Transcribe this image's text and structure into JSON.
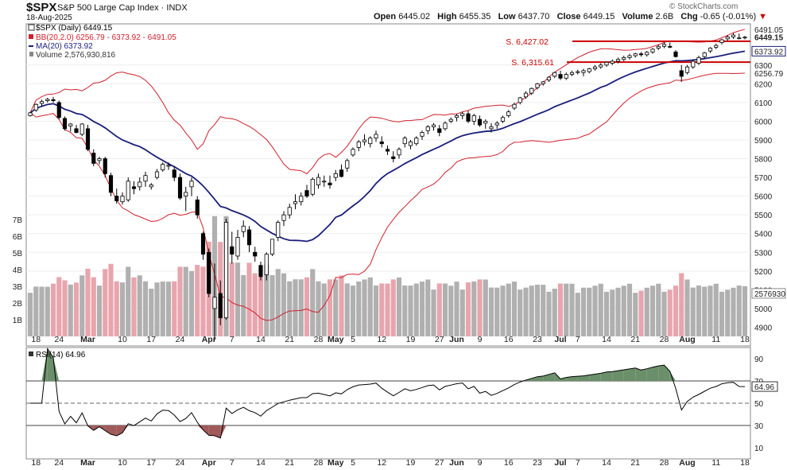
{
  "header": {
    "symbol": "$SPX",
    "name": "S&P 500 Large Cap Index",
    "exchange": "INDX",
    "date": "18-Aug-2025",
    "open_label": "Open",
    "open": "6445.02",
    "high_label": "High",
    "high": "6455.35",
    "low_label": "Low",
    "low": "6437.70",
    "close_label": "Close",
    "close": "6449.15",
    "volume_label": "Volume",
    "volume": "2.6B",
    "chg_label": "Chg",
    "chg": "-0.65 (-0.01%)",
    "watermark": "© StockCharts.com"
  },
  "legend": {
    "price": "$SPX (Daily) 6449.15",
    "bb": "BB(20,2.0) 6256.79 - 6373.92 - 6491.05",
    "ma": "MA(20) 6373.92",
    "volume": "Volume 2,576,930,816",
    "rsi": "RSI(14) 64.96"
  },
  "colors": {
    "up": "#ffffff",
    "down": "#000000",
    "bb": "#d0202c",
    "ma": "#1a1f7a",
    "vol_up": "#b0b0b0",
    "vol_down": "#e8a5ad",
    "support": "#cc0000",
    "rsi_fill": "#6a8f6a"
  },
  "annotations": [
    {
      "text": "S. 6,427.02",
      "price": 6427.02
    },
    {
      "text": "S. 6,315.61",
      "price": 6315.61
    }
  ],
  "price_axis": {
    "ticks": [
      "6300",
      "6200",
      "6100",
      "6000",
      "5900",
      "5800",
      "5700",
      "5600",
      "5500",
      "5400",
      "5300",
      "5200",
      "5100",
      "5000",
      "4900"
    ],
    "markers": [
      {
        "text": "6491.05",
        "value": 6491.05,
        "style": "plain"
      },
      {
        "text": "6449.15",
        "value": 6449.15,
        "style": "bold"
      },
      {
        "text": "6373.92",
        "value": 6373.92,
        "style": "box"
      },
      {
        "text": "6256.79",
        "value": 6256.79,
        "style": "plain"
      }
    ]
  },
  "volume_axis": {
    "ticks": [
      "7B",
      "6B",
      "5B",
      "4B",
      "3B",
      "2B",
      "1B"
    ],
    "marker": "2576930"
  },
  "rsi_axis": {
    "ticks": [
      "90",
      "70",
      "50",
      "30",
      "10"
    ],
    "marker": "64.96"
  },
  "x_axis": {
    "labels": [
      "18",
      "24",
      "Mar",
      "10",
      "17",
      "24",
      "Apr",
      "7",
      "14",
      "21",
      "28",
      "May",
      "5",
      "12",
      "19",
      "27",
      "Jun",
      "9",
      "16",
      "23",
      "Jul",
      "7",
      "14",
      "21",
      "28",
      "Aug",
      "11",
      "18"
    ],
    "bold": [
      "Mar",
      "Apr",
      "May",
      "Jun",
      "Jul",
      "Aug"
    ]
  },
  "chart_data": {
    "type": "candlestick",
    "period": "daily",
    "x_start": "2025-02-13",
    "x_end": "2025-08-18",
    "price_ylim": [
      4800,
      6520
    ],
    "candles": [
      [
        6030,
        6050,
        6025,
        6045
      ],
      [
        6060,
        6095,
        6050,
        6090
      ],
      [
        6095,
        6115,
        6080,
        6105
      ],
      [
        6110,
        6125,
        6100,
        6117
      ],
      [
        6115,
        6130,
        6100,
        6110
      ],
      [
        6100,
        6110,
        6010,
        6020
      ],
      [
        6015,
        6025,
        5950,
        5960
      ],
      [
        5975,
        5990,
        5945,
        5985
      ],
      [
        5960,
        5980,
        5935,
        5940
      ],
      [
        5930,
        5990,
        5920,
        5985
      ],
      [
        5960,
        5980,
        5840,
        5850
      ],
      [
        5830,
        5850,
        5760,
        5775
      ],
      [
        5790,
        5810,
        5770,
        5800
      ],
      [
        5800,
        5810,
        5700,
        5720
      ],
      [
        5710,
        5725,
        5600,
        5620
      ],
      [
        5600,
        5640,
        5560,
        5575
      ],
      [
        5570,
        5620,
        5555,
        5600
      ],
      [
        5580,
        5700,
        5570,
        5680
      ],
      [
        5650,
        5680,
        5610,
        5640
      ],
      [
        5650,
        5700,
        5630,
        5675
      ],
      [
        5680,
        5730,
        5650,
        5710
      ],
      [
        5650,
        5670,
        5635,
        5660
      ],
      [
        5700,
        5745,
        5690,
        5730
      ],
      [
        5740,
        5780,
        5730,
        5770
      ],
      [
        5760,
        5780,
        5740,
        5765
      ],
      [
        5740,
        5760,
        5680,
        5700
      ],
      [
        5700,
        5720,
        5580,
        5590
      ],
      [
        5600,
        5650,
        5520,
        5620
      ],
      [
        5650,
        5700,
        5600,
        5680
      ],
      [
        5580,
        5600,
        5480,
        5500
      ],
      [
        5400,
        5410,
        5260,
        5290
      ],
      [
        5300,
        5320,
        5060,
        5080
      ],
      [
        5000,
        5240,
        4830,
        5060
      ],
      [
        5080,
        5150,
        4910,
        4950
      ],
      [
        4950,
        5480,
        4940,
        5460
      ],
      [
        5330,
        5410,
        5240,
        5290
      ],
      [
        5280,
        5420,
        5260,
        5380
      ],
      [
        5410,
        5470,
        5380,
        5440
      ],
      [
        5420,
        5440,
        5300,
        5340
      ],
      [
        5300,
        5330,
        5250,
        5280
      ],
      [
        5230,
        5250,
        5150,
        5170
      ],
      [
        5180,
        5300,
        5150,
        5290
      ],
      [
        5290,
        5370,
        5280,
        5370
      ],
      [
        5380,
        5470,
        5360,
        5460
      ],
      [
        5470,
        5520,
        5440,
        5500
      ],
      [
        5500,
        5560,
        5480,
        5540
      ],
      [
        5560,
        5610,
        5530,
        5570
      ],
      [
        5570,
        5620,
        5550,
        5600
      ],
      [
        5630,
        5660,
        5590,
        5600
      ],
      [
        5610,
        5700,
        5600,
        5690
      ],
      [
        5660,
        5720,
        5640,
        5700
      ],
      [
        5680,
        5710,
        5650,
        5680
      ],
      [
        5670,
        5710,
        5640,
        5660
      ],
      [
        5700,
        5740,
        5680,
        5720
      ],
      [
        5740,
        5770,
        5700,
        5705
      ],
      [
        5750,
        5800,
        5730,
        5790
      ],
      [
        5820,
        5860,
        5810,
        5850
      ],
      [
        5860,
        5900,
        5840,
        5890
      ],
      [
        5890,
        5930,
        5870,
        5900
      ],
      [
        5880,
        5920,
        5860,
        5910
      ],
      [
        5910,
        5950,
        5890,
        5930
      ],
      [
        5890,
        5920,
        5860,
        5880
      ],
      [
        5850,
        5870,
        5820,
        5840
      ],
      [
        5810,
        5840,
        5780,
        5800
      ],
      [
        5820,
        5860,
        5800,
        5850
      ],
      [
        5880,
        5920,
        5860,
        5910
      ],
      [
        5870,
        5900,
        5850,
        5890
      ],
      [
        5880,
        5920,
        5870,
        5910
      ],
      [
        5920,
        5950,
        5900,
        5940
      ],
      [
        5950,
        5980,
        5930,
        5970
      ],
      [
        5970,
        5990,
        5950,
        5980
      ],
      [
        5960,
        5980,
        5920,
        5940
      ],
      [
        5960,
        6000,
        5950,
        5990
      ],
      [
        6000,
        6020,
        5990,
        6010
      ],
      [
        6020,
        6040,
        6000,
        6030
      ],
      [
        6030,
        6050,
        6010,
        6040
      ],
      [
        6040,
        6055,
        5990,
        6000
      ],
      [
        6000,
        6040,
        5980,
        6030
      ],
      [
        6010,
        6030,
        5970,
        5980
      ],
      [
        5990,
        6010,
        5960,
        6000
      ],
      [
        5960,
        5990,
        5940,
        5970
      ],
      [
        5980,
        6000,
        5960,
        5990
      ],
      [
        6000,
        6030,
        5990,
        6020
      ],
      [
        6030,
        6060,
        6020,
        6050
      ],
      [
        6070,
        6100,
        6060,
        6090
      ],
      [
        6100,
        6130,
        6090,
        6125
      ],
      [
        6130,
        6160,
        6120,
        6150
      ],
      [
        6150,
        6180,
        6140,
        6175
      ],
      [
        6180,
        6205,
        6170,
        6200
      ],
      [
        6200,
        6215,
        6190,
        6210
      ],
      [
        6220,
        6240,
        6210,
        6235
      ],
      [
        6240,
        6265,
        6230,
        6260
      ],
      [
        6250,
        6270,
        6220,
        6230
      ],
      [
        6230,
        6260,
        6220,
        6250
      ],
      [
        6250,
        6270,
        6240,
        6260
      ],
      [
        6260,
        6275,
        6250,
        6265
      ],
      [
        6260,
        6280,
        6240,
        6270
      ],
      [
        6265,
        6285,
        6255,
        6280
      ],
      [
        6280,
        6300,
        6270,
        6290
      ],
      [
        6290,
        6310,
        6280,
        6300
      ],
      [
        6300,
        6320,
        6290,
        6315
      ],
      [
        6310,
        6330,
        6300,
        6320
      ],
      [
        6320,
        6340,
        6310,
        6330
      ],
      [
        6330,
        6350,
        6320,
        6340
      ],
      [
        6340,
        6360,
        6330,
        6350
      ],
      [
        6350,
        6365,
        6340,
        6360
      ],
      [
        6360,
        6370,
        6345,
        6355
      ],
      [
        6355,
        6375,
        6345,
        6368
      ],
      [
        6370,
        6390,
        6360,
        6385
      ],
      [
        6390,
        6410,
        6380,
        6400
      ],
      [
        6400,
        6420,
        6390,
        6410
      ],
      [
        6400,
        6420,
        6390,
        6395
      ],
      [
        6370,
        6380,
        6340,
        6345
      ],
      [
        6270,
        6300,
        6210,
        6240
      ],
      [
        6260,
        6300,
        6250,
        6290
      ],
      [
        6290,
        6330,
        6280,
        6320
      ],
      [
        6310,
        6350,
        6300,
        6340
      ],
      [
        6345,
        6370,
        6335,
        6365
      ],
      [
        6375,
        6395,
        6365,
        6390
      ],
      [
        6395,
        6415,
        6385,
        6405
      ],
      [
        6420,
        6440,
        6410,
        6435
      ],
      [
        6440,
        6460,
        6430,
        6450
      ],
      [
        6450,
        6470,
        6440,
        6460
      ],
      [
        6445,
        6468,
        6437,
        6445
      ],
      [
        6445,
        6455,
        6437,
        6449
      ]
    ],
    "bollinger": {
      "upper_end": 6491.05,
      "middle_end": 6373.92,
      "lower_end": 6256.79
    },
    "ma20_end": 6373.92,
    "support_levels": [
      6427.02,
      6315.61
    ],
    "volume_ylim": [
      0,
      8
    ],
    "volume_unit": "B",
    "volume_last": 2576930816,
    "rsi_ylim": [
      0,
      100
    ],
    "rsi_reference_lines": [
      70,
      50,
      30
    ],
    "rsi_last": 64.96
  }
}
